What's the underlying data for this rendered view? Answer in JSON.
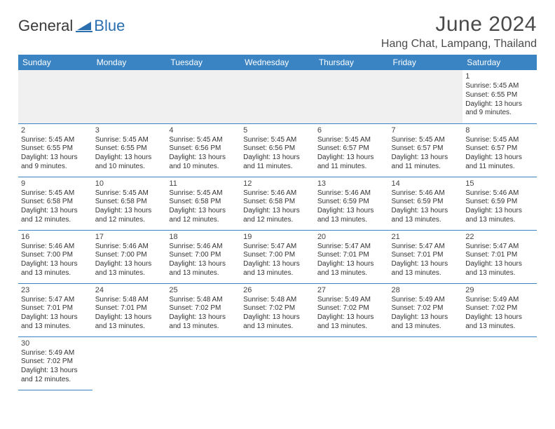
{
  "logo": {
    "word1": "General",
    "word2": "Blue"
  },
  "title": "June 2024",
  "location": "Hang Chat, Lampang, Thailand",
  "colors": {
    "header_bg": "#3b84c4",
    "header_text": "#ffffff",
    "border": "#3b84c4",
    "empty_bg": "#f0f0f0",
    "text": "#333333",
    "title_text": "#4a4a4a",
    "logo_blue": "#2b6fb0"
  },
  "day_headers": [
    "Sunday",
    "Monday",
    "Tuesday",
    "Wednesday",
    "Thursday",
    "Friday",
    "Saturday"
  ],
  "weeks": [
    [
      null,
      null,
      null,
      null,
      null,
      null,
      {
        "n": "1",
        "sr": "Sunrise: 5:45 AM",
        "ss": "Sunset: 6:55 PM",
        "d1": "Daylight: 13 hours",
        "d2": "and 9 minutes."
      }
    ],
    [
      {
        "n": "2",
        "sr": "Sunrise: 5:45 AM",
        "ss": "Sunset: 6:55 PM",
        "d1": "Daylight: 13 hours",
        "d2": "and 9 minutes."
      },
      {
        "n": "3",
        "sr": "Sunrise: 5:45 AM",
        "ss": "Sunset: 6:55 PM",
        "d1": "Daylight: 13 hours",
        "d2": "and 10 minutes."
      },
      {
        "n": "4",
        "sr": "Sunrise: 5:45 AM",
        "ss": "Sunset: 6:56 PM",
        "d1": "Daylight: 13 hours",
        "d2": "and 10 minutes."
      },
      {
        "n": "5",
        "sr": "Sunrise: 5:45 AM",
        "ss": "Sunset: 6:56 PM",
        "d1": "Daylight: 13 hours",
        "d2": "and 11 minutes."
      },
      {
        "n": "6",
        "sr": "Sunrise: 5:45 AM",
        "ss": "Sunset: 6:57 PM",
        "d1": "Daylight: 13 hours",
        "d2": "and 11 minutes."
      },
      {
        "n": "7",
        "sr": "Sunrise: 5:45 AM",
        "ss": "Sunset: 6:57 PM",
        "d1": "Daylight: 13 hours",
        "d2": "and 11 minutes."
      },
      {
        "n": "8",
        "sr": "Sunrise: 5:45 AM",
        "ss": "Sunset: 6:57 PM",
        "d1": "Daylight: 13 hours",
        "d2": "and 11 minutes."
      }
    ],
    [
      {
        "n": "9",
        "sr": "Sunrise: 5:45 AM",
        "ss": "Sunset: 6:58 PM",
        "d1": "Daylight: 13 hours",
        "d2": "and 12 minutes."
      },
      {
        "n": "10",
        "sr": "Sunrise: 5:45 AM",
        "ss": "Sunset: 6:58 PM",
        "d1": "Daylight: 13 hours",
        "d2": "and 12 minutes."
      },
      {
        "n": "11",
        "sr": "Sunrise: 5:45 AM",
        "ss": "Sunset: 6:58 PM",
        "d1": "Daylight: 13 hours",
        "d2": "and 12 minutes."
      },
      {
        "n": "12",
        "sr": "Sunrise: 5:46 AM",
        "ss": "Sunset: 6:58 PM",
        "d1": "Daylight: 13 hours",
        "d2": "and 12 minutes."
      },
      {
        "n": "13",
        "sr": "Sunrise: 5:46 AM",
        "ss": "Sunset: 6:59 PM",
        "d1": "Daylight: 13 hours",
        "d2": "and 13 minutes."
      },
      {
        "n": "14",
        "sr": "Sunrise: 5:46 AM",
        "ss": "Sunset: 6:59 PM",
        "d1": "Daylight: 13 hours",
        "d2": "and 13 minutes."
      },
      {
        "n": "15",
        "sr": "Sunrise: 5:46 AM",
        "ss": "Sunset: 6:59 PM",
        "d1": "Daylight: 13 hours",
        "d2": "and 13 minutes."
      }
    ],
    [
      {
        "n": "16",
        "sr": "Sunrise: 5:46 AM",
        "ss": "Sunset: 7:00 PM",
        "d1": "Daylight: 13 hours",
        "d2": "and 13 minutes."
      },
      {
        "n": "17",
        "sr": "Sunrise: 5:46 AM",
        "ss": "Sunset: 7:00 PM",
        "d1": "Daylight: 13 hours",
        "d2": "and 13 minutes."
      },
      {
        "n": "18",
        "sr": "Sunrise: 5:46 AM",
        "ss": "Sunset: 7:00 PM",
        "d1": "Daylight: 13 hours",
        "d2": "and 13 minutes."
      },
      {
        "n": "19",
        "sr": "Sunrise: 5:47 AM",
        "ss": "Sunset: 7:00 PM",
        "d1": "Daylight: 13 hours",
        "d2": "and 13 minutes."
      },
      {
        "n": "20",
        "sr": "Sunrise: 5:47 AM",
        "ss": "Sunset: 7:01 PM",
        "d1": "Daylight: 13 hours",
        "d2": "and 13 minutes."
      },
      {
        "n": "21",
        "sr": "Sunrise: 5:47 AM",
        "ss": "Sunset: 7:01 PM",
        "d1": "Daylight: 13 hours",
        "d2": "and 13 minutes."
      },
      {
        "n": "22",
        "sr": "Sunrise: 5:47 AM",
        "ss": "Sunset: 7:01 PM",
        "d1": "Daylight: 13 hours",
        "d2": "and 13 minutes."
      }
    ],
    [
      {
        "n": "23",
        "sr": "Sunrise: 5:47 AM",
        "ss": "Sunset: 7:01 PM",
        "d1": "Daylight: 13 hours",
        "d2": "and 13 minutes."
      },
      {
        "n": "24",
        "sr": "Sunrise: 5:48 AM",
        "ss": "Sunset: 7:01 PM",
        "d1": "Daylight: 13 hours",
        "d2": "and 13 minutes."
      },
      {
        "n": "25",
        "sr": "Sunrise: 5:48 AM",
        "ss": "Sunset: 7:02 PM",
        "d1": "Daylight: 13 hours",
        "d2": "and 13 minutes."
      },
      {
        "n": "26",
        "sr": "Sunrise: 5:48 AM",
        "ss": "Sunset: 7:02 PM",
        "d1": "Daylight: 13 hours",
        "d2": "and 13 minutes."
      },
      {
        "n": "27",
        "sr": "Sunrise: 5:49 AM",
        "ss": "Sunset: 7:02 PM",
        "d1": "Daylight: 13 hours",
        "d2": "and 13 minutes."
      },
      {
        "n": "28",
        "sr": "Sunrise: 5:49 AM",
        "ss": "Sunset: 7:02 PM",
        "d1": "Daylight: 13 hours",
        "d2": "and 13 minutes."
      },
      {
        "n": "29",
        "sr": "Sunrise: 5:49 AM",
        "ss": "Sunset: 7:02 PM",
        "d1": "Daylight: 13 hours",
        "d2": "and 13 minutes."
      }
    ],
    [
      {
        "n": "30",
        "sr": "Sunrise: 5:49 AM",
        "ss": "Sunset: 7:02 PM",
        "d1": "Daylight: 13 hours",
        "d2": "and 12 minutes."
      },
      null,
      null,
      null,
      null,
      null,
      null
    ]
  ]
}
